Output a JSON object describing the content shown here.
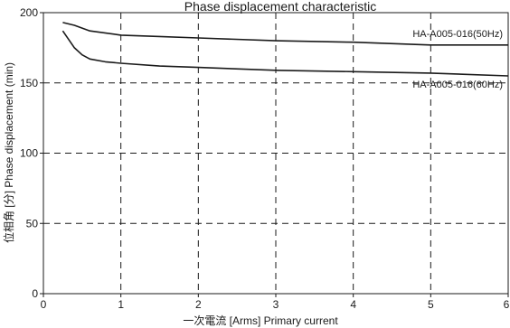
{
  "chart_data": {
    "type": "line",
    "title": "Phase displacement characteristic",
    "xlabel": "一次電流 [Arms]   Primary current",
    "ylabel": "位相角 [分]   Phase displacement (min)",
    "xlim": [
      0,
      6
    ],
    "ylim": [
      0,
      200
    ],
    "x_ticks": [
      "0",
      "1",
      "2",
      "3",
      "4",
      "5",
      "6"
    ],
    "y_ticks": [
      "0",
      "50",
      "100",
      "150",
      "200"
    ],
    "grid": "dashed",
    "series": [
      {
        "name": "HA-A005-016(50Hz)",
        "color": "#1a1a1a",
        "x": [
          0.25,
          0.4,
          0.6,
          1.0,
          1.5,
          2.0,
          3.0,
          4.0,
          5.0,
          6.0
        ],
        "y": [
          193,
          191,
          187,
          184,
          183,
          182,
          180,
          179,
          177,
          177
        ]
      },
      {
        "name": "HA-A005-016(60Hz)",
        "color": "#1a1a1a",
        "x": [
          0.25,
          0.3,
          0.4,
          0.5,
          0.6,
          0.8,
          1.0,
          1.5,
          2.0,
          3.0,
          4.0,
          5.0,
          6.0
        ],
        "y": [
          187,
          183,
          175,
          170,
          167,
          165,
          164,
          162,
          161,
          159,
          158,
          157,
          155
        ]
      }
    ]
  }
}
